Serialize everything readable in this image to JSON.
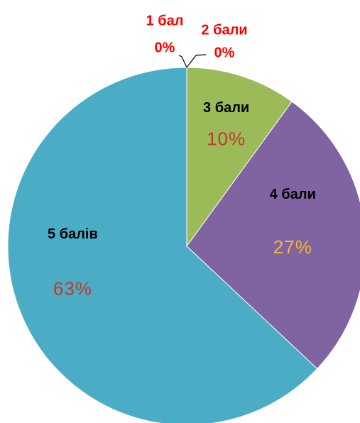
{
  "chart_data": {
    "type": "pie",
    "categories": [
      "1 бал",
      "2 бали",
      "3 бали",
      "4 бали",
      "5 балів"
    ],
    "values": [
      0,
      0,
      10,
      27,
      63
    ],
    "value_labels": [
      "0%",
      "0%",
      "10%",
      "27%",
      "63%"
    ],
    "colors": [
      "#4f81bd",
      "#c0504d",
      "#9bbb59",
      "#8064a2",
      "#4bacc6"
    ],
    "category_label_colors": [
      "#ff0000",
      "#ff0000",
      "#000000",
      "#000000",
      "#000000"
    ],
    "value_label_colors": [
      "#ff0000",
      "#ff0000",
      "#c0392b",
      "#f5b82e",
      "#c0392b"
    ]
  }
}
